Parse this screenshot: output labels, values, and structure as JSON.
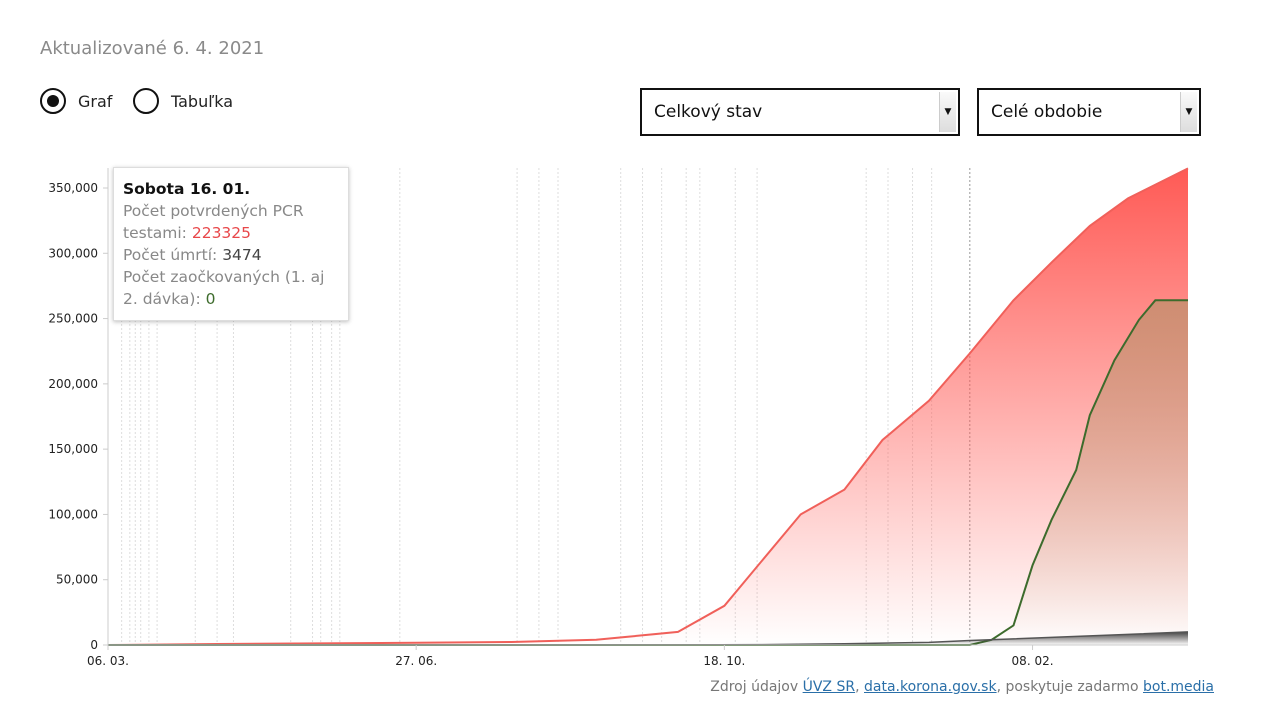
{
  "header": {
    "updated": "Aktualizované 6. 4. 2021"
  },
  "view_toggle": [
    {
      "label": "Graf",
      "selected": true
    },
    {
      "label": "Tabuľka",
      "selected": false
    }
  ],
  "selects": {
    "metric": "Celkový stav",
    "period": "Celé obdobie"
  },
  "tooltip": {
    "title": "Sobota 16. 01.",
    "cases_label": "Počet potvrdených PCR testami:",
    "cases_value": "223325",
    "deaths_label": "Počet úmrtí:",
    "deaths_value": "3474",
    "vacc_label": "Počet zaočkovaných (1. aj 2. dávka):",
    "vacc_value": "0"
  },
  "source": {
    "prefix": "Zdroj údajov ",
    "link1": "ÚVZ SR",
    "sep": ", ",
    "link2": "data.korona.gov.sk",
    "mid": ", poskytuje zadarmo ",
    "link3": "bot.media"
  },
  "chart_data": {
    "type": "area",
    "x_range": [
      "2020-03-06",
      "2021-04-06"
    ],
    "ylim": [
      0,
      365000
    ],
    "y_ticks": [
      0,
      50000,
      100000,
      150000,
      200000,
      250000,
      300000,
      350000
    ],
    "y_tick_labels": [
      "0",
      "50,000",
      "100,000",
      "150,000",
      "200,000",
      "250,000",
      "300,000",
      "350,000"
    ],
    "x_ticks": [
      "2020-03-06",
      "2020-06-27",
      "2020-10-18",
      "2021-02-08"
    ],
    "x_tick_labels": [
      "06. 03.",
      "27. 06.",
      "18. 10.",
      "08. 02."
    ],
    "grid": false,
    "colors": {
      "cases": "#f0605a",
      "vaccinated": "#3d6b2c",
      "deaths": "#555555"
    },
    "hover_date": "2021-01-16",
    "event_markers": [
      "2020-03-11",
      "2020-03-14",
      "2020-03-16",
      "2020-03-18",
      "2020-03-21",
      "2020-03-24",
      "2020-04-07",
      "2020-04-15",
      "2020-04-21",
      "2020-05-12",
      "2020-05-20",
      "2020-05-23",
      "2020-05-27",
      "2020-05-30",
      "2020-06-21",
      "2020-08-03",
      "2020-08-11",
      "2020-08-18",
      "2020-09-10",
      "2020-09-18",
      "2020-09-25",
      "2020-10-04",
      "2020-10-09",
      "2020-10-22",
      "2020-10-30",
      "2020-12-09",
      "2020-12-17",
      "2020-12-26",
      "2021-01-02"
    ],
    "series": [
      {
        "key": "cases",
        "points": [
          [
            "2020-03-06",
            0
          ],
          [
            "2020-04-15",
            800
          ],
          [
            "2020-06-27",
            1700
          ],
          [
            "2020-08-01",
            2300
          ],
          [
            "2020-09-01",
            4000
          ],
          [
            "2020-10-01",
            10000
          ],
          [
            "2020-10-18",
            30000
          ],
          [
            "2020-11-01",
            65000
          ],
          [
            "2020-11-15",
            100000
          ],
          [
            "2020-12-01",
            119000
          ],
          [
            "2020-12-15",
            157000
          ],
          [
            "2021-01-01",
            187000
          ],
          [
            "2021-01-16",
            223325
          ],
          [
            "2021-02-01",
            264000
          ],
          [
            "2021-02-15",
            293000
          ],
          [
            "2021-03-01",
            321000
          ],
          [
            "2021-03-15",
            342000
          ],
          [
            "2021-04-06",
            365000
          ]
        ]
      },
      {
        "key": "deaths",
        "points": [
          [
            "2020-03-06",
            0
          ],
          [
            "2020-10-01",
            50
          ],
          [
            "2020-11-01",
            300
          ],
          [
            "2020-12-01",
            1000
          ],
          [
            "2021-01-01",
            2000
          ],
          [
            "2021-01-16",
            3474
          ],
          [
            "2021-03-01",
            7000
          ],
          [
            "2021-04-06",
            10000
          ]
        ]
      },
      {
        "key": "vaccinated",
        "points": [
          [
            "2020-03-06",
            0
          ],
          [
            "2021-01-16",
            0
          ],
          [
            "2021-01-24",
            4000
          ],
          [
            "2021-02-01",
            15000
          ],
          [
            "2021-02-08",
            61000
          ],
          [
            "2021-02-15",
            96000
          ],
          [
            "2021-02-24",
            134000
          ],
          [
            "2021-03-01",
            176000
          ],
          [
            "2021-03-10",
            218000
          ],
          [
            "2021-03-19",
            249000
          ],
          [
            "2021-03-25",
            264000
          ],
          [
            "2021-04-06",
            264000
          ]
        ]
      }
    ]
  }
}
